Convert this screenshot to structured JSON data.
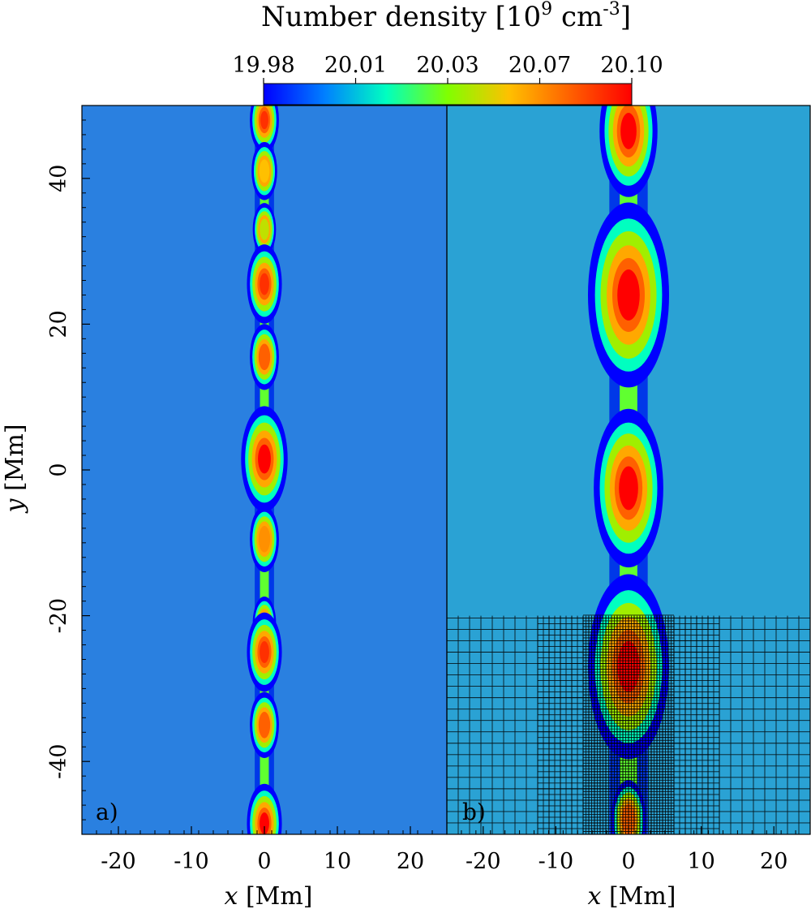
{
  "chart_data": {
    "type": "heatmap",
    "colorbar": {
      "title_main": "Number density [10",
      "title_exp1": "9",
      "title_mid": " cm",
      "title_exp2": "-3",
      "title_end": "]",
      "ticks": [
        "19.98",
        "20.01",
        "20.03",
        "20.07",
        "20.10"
      ],
      "range": [
        19.98,
        20.1
      ],
      "colormap": [
        "#0000ff",
        "#0080ff",
        "#00ffc0",
        "#80ff00",
        "#ffc000",
        "#ff6000",
        "#ff0000"
      ]
    },
    "ylabel_var": "y",
    "ylabel_unit": " [Mm]",
    "ylim": [
      -50,
      50
    ],
    "yticks": [
      40,
      20,
      0,
      -20,
      -40
    ],
    "ytick_labels": [
      "40",
      "20",
      "0",
      "-20",
      "-40"
    ],
    "panels": [
      {
        "label": "a)",
        "xlabel_var": "x",
        "xlabel_unit": " [Mm]",
        "xlim": [
          -25,
          25
        ],
        "xticks": [
          -20,
          -10,
          0,
          10,
          20
        ],
        "xtick_labels": [
          "-20",
          "-10",
          "0",
          "10",
          "20"
        ],
        "background_color": "#2a80e0",
        "filament_x": 0,
        "blobs": [
          {
            "y": 48.0,
            "size": 2.5,
            "peak": 20.09
          },
          {
            "y": 41.0,
            "size": 2.2,
            "peak": 20.06
          },
          {
            "y": 33.0,
            "size": 2.0,
            "peak": 20.05
          },
          {
            "y": 25.5,
            "size": 3.0,
            "peak": 20.09
          },
          {
            "y": 15.5,
            "size": 2.5,
            "peak": 20.08
          },
          {
            "y": 1.5,
            "size": 4.0,
            "peak": 20.1
          },
          {
            "y": -9.5,
            "size": 2.5,
            "peak": 20.07
          },
          {
            "y": -21.0,
            "size": 2.0,
            "peak": 20.05
          },
          {
            "y": -25.0,
            "size": 3.0,
            "peak": 20.09
          },
          {
            "y": -35.0,
            "size": 2.5,
            "peak": 20.08
          },
          {
            "y": -48.5,
            "size": 3.0,
            "peak": 20.1
          }
        ]
      },
      {
        "label": "b)",
        "xlabel_var": "x",
        "xlabel_unit": " [Mm]",
        "xlim": [
          -25,
          25
        ],
        "xticks": [
          -20,
          -10,
          0,
          10,
          20
        ],
        "xtick_labels": [
          "-20",
          "-10",
          "0",
          "10",
          "20"
        ],
        "background_color": "#2aa2d4",
        "filament_x": 0,
        "blobs": [
          {
            "y": 46.5,
            "size": 5.0,
            "peak": 20.1
          },
          {
            "y": 24.0,
            "size": 7.0,
            "peak": 20.1
          },
          {
            "y": -2.5,
            "size": 6.0,
            "peak": 20.1
          },
          {
            "y": -27.0,
            "size": 7.0,
            "peak": 20.1
          },
          {
            "y": -48.0,
            "size": 3.0,
            "peak": 20.08
          }
        ],
        "mesh_overlay": {
          "y_range": [
            -50,
            -20
          ],
          "levels": [
            {
              "x_range": [
                -25,
                25
              ],
              "spacing": 1.5625
            },
            {
              "x_range": [
                -12.5,
                12.5
              ],
              "spacing": 0.78125
            },
            {
              "x_range": [
                -6.25,
                6.25
              ],
              "spacing": 0.390625
            }
          ]
        }
      }
    ]
  }
}
